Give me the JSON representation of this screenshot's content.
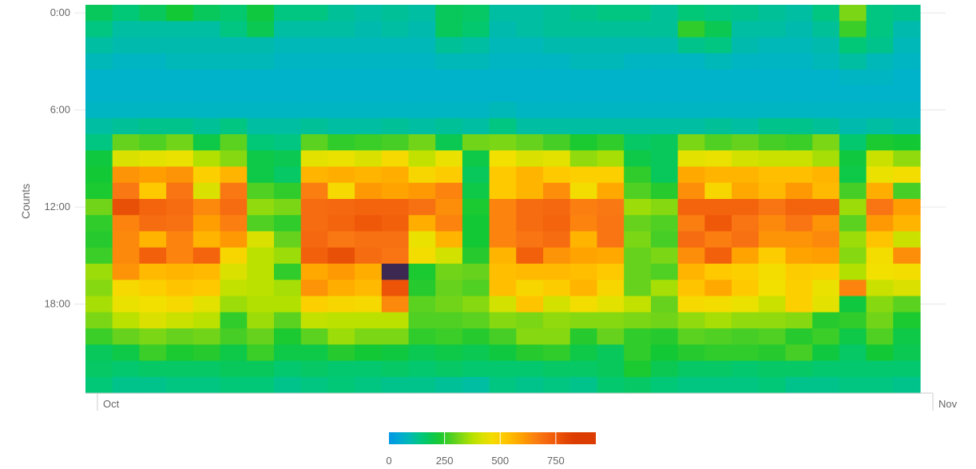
{
  "chart_data": {
    "type": "heatmap",
    "title": "",
    "xlabel": "",
    "ylabel": "Counts",
    "x_tick_labels": [
      "Oct",
      "Nov"
    ],
    "y_tick_labels": [
      "0:00",
      "6:00",
      "12:00",
      "18:00"
    ],
    "y_unit": "hour of day",
    "x_unit": "day",
    "columns": 31,
    "rows": 24,
    "color_range": [
      0,
      930
    ],
    "legend_ticks": [
      "0",
      "250",
      "500",
      "750"
    ],
    "legend_placement": "bottom-center",
    "grid": true,
    "colors": [
      "#0096e6",
      "#00b4c8",
      "#00c878",
      "#14c832",
      "#64d21e",
      "#b4e100",
      "#f0e100",
      "#ffc800",
      "#ffa000",
      "#fa7814",
      "#f05a0a",
      "#dc3c00",
      "#3c2850"
    ],
    "values": [
      [
        180,
        150,
        180,
        220,
        180,
        160,
        210,
        140,
        140,
        120,
        110,
        120,
        110,
        180,
        170,
        110,
        110,
        120,
        130,
        140,
        140,
        120,
        150,
        140,
        130,
        120,
        110,
        140,
        320,
        140,
        130
      ],
      [
        140,
        110,
        110,
        110,
        110,
        140,
        190,
        110,
        110,
        110,
        100,
        110,
        100,
        180,
        160,
        100,
        110,
        120,
        120,
        120,
        120,
        120,
        250,
        190,
        110,
        110,
        100,
        120,
        260,
        140,
        100
      ],
      [
        110,
        100,
        100,
        100,
        100,
        100,
        100,
        90,
        90,
        90,
        90,
        90,
        90,
        120,
        110,
        90,
        90,
        100,
        100,
        100,
        100,
        100,
        130,
        140,
        100,
        90,
        90,
        100,
        150,
        130,
        90
      ],
      [
        90,
        80,
        80,
        90,
        90,
        90,
        90,
        80,
        80,
        80,
        80,
        80,
        80,
        90,
        90,
        80,
        80,
        80,
        90,
        90,
        80,
        80,
        80,
        90,
        80,
        80,
        80,
        90,
        110,
        90,
        80
      ],
      [
        70,
        70,
        70,
        70,
        70,
        70,
        70,
        70,
        70,
        70,
        70,
        70,
        70,
        70,
        70,
        70,
        70,
        70,
        70,
        70,
        70,
        70,
        70,
        70,
        70,
        70,
        70,
        70,
        80,
        80,
        70
      ],
      [
        70,
        70,
        70,
        70,
        70,
        70,
        70,
        70,
        70,
        70,
        70,
        70,
        70,
        70,
        70,
        70,
        70,
        70,
        70,
        70,
        70,
        70,
        70,
        70,
        70,
        70,
        70,
        70,
        70,
        70,
        70
      ],
      [
        80,
        80,
        80,
        80,
        80,
        80,
        80,
        80,
        80,
        80,
        80,
        80,
        80,
        80,
        80,
        90,
        80,
        80,
        80,
        80,
        80,
        80,
        80,
        80,
        80,
        80,
        80,
        80,
        80,
        80,
        80
      ],
      [
        110,
        120,
        130,
        130,
        120,
        140,
        110,
        110,
        120,
        110,
        110,
        120,
        110,
        120,
        110,
        140,
        110,
        110,
        110,
        110,
        110,
        110,
        110,
        120,
        110,
        130,
        130,
        120,
        100,
        110,
        100
      ],
      [
        140,
        300,
        280,
        310,
        200,
        290,
        150,
        140,
        290,
        250,
        260,
        270,
        310,
        190,
        310,
        320,
        300,
        270,
        230,
        250,
        170,
        180,
        320,
        280,
        300,
        270,
        260,
        320,
        160,
        230,
        220
      ],
      [
        210,
        420,
        430,
        440,
        370,
        330,
        200,
        190,
        430,
        440,
        420,
        470,
        390,
        440,
        200,
        450,
        420,
        430,
        340,
        360,
        200,
        180,
        430,
        440,
        410,
        400,
        400,
        360,
        210,
        400,
        340
      ],
      [
        220,
        620,
        600,
        620,
        500,
        560,
        200,
        170,
        560,
        570,
        560,
        570,
        480,
        510,
        180,
        520,
        560,
        520,
        500,
        500,
        250,
        180,
        580,
        560,
        560,
        540,
        540,
        560,
        200,
        440,
        460
      ],
      [
        230,
        670,
        520,
        680,
        420,
        670,
        280,
        250,
        660,
        470,
        610,
        590,
        610,
        650,
        200,
        520,
        560,
        630,
        460,
        580,
        280,
        240,
        630,
        480,
        580,
        550,
        610,
        550,
        270,
        570,
        270
      ],
      [
        310,
        770,
        720,
        700,
        640,
        700,
        340,
        320,
        700,
        710,
        720,
        720,
        690,
        630,
        230,
        650,
        700,
        710,
        660,
        670,
        350,
        330,
        720,
        720,
        720,
        680,
        720,
        720,
        350,
        680,
        600
      ],
      [
        250,
        650,
        700,
        690,
        600,
        660,
        280,
        250,
        700,
        720,
        750,
        730,
        570,
        650,
        220,
        650,
        700,
        720,
        650,
        680,
        300,
        280,
        660,
        750,
        680,
        640,
        680,
        620,
        290,
        610,
        560
      ],
      [
        240,
        640,
        560,
        650,
        560,
        610,
        420,
        300,
        710,
        670,
        690,
        690,
        440,
        560,
        220,
        650,
        680,
        700,
        560,
        680,
        320,
        270,
        700,
        660,
        690,
        620,
        620,
        640,
        350,
        530,
        400
      ],
      [
        260,
        640,
        730,
        650,
        720,
        480,
        380,
        350,
        730,
        770,
        700,
        680,
        460,
        410,
        240,
        560,
        730,
        620,
        590,
        580,
        300,
        320,
        630,
        730,
        590,
        510,
        590,
        600,
        330,
        460,
        630
      ],
      [
        350,
        620,
        550,
        560,
        550,
        420,
        380,
        250,
        580,
        610,
        570,
        930,
        230,
        310,
        300,
        540,
        550,
        550,
        540,
        520,
        300,
        280,
        560,
        520,
        500,
        460,
        510,
        500,
        370,
        450,
        460
      ],
      [
        330,
        470,
        500,
        530,
        520,
        390,
        380,
        360,
        620,
        570,
        550,
        760,
        240,
        300,
        280,
        540,
        480,
        510,
        560,
        480,
        300,
        360,
        530,
        580,
        520,
        450,
        500,
        440,
        650,
        400,
        420
      ],
      [
        360,
        440,
        450,
        470,
        430,
        350,
        370,
        370,
        500,
        480,
        470,
        640,
        290,
        310,
        330,
        410,
        530,
        410,
        460,
        430,
        390,
        300,
        470,
        460,
        440,
        400,
        500,
        430,
        210,
        330,
        290
      ],
      [
        320,
        380,
        420,
        400,
        380,
        250,
        350,
        290,
        390,
        380,
        380,
        380,
        280,
        280,
        290,
        330,
        320,
        340,
        330,
        330,
        320,
        310,
        340,
        360,
        340,
        340,
        330,
        240,
        250,
        310,
        230
      ],
      [
        260,
        300,
        320,
        300,
        310,
        270,
        300,
        230,
        290,
        350,
        320,
        320,
        250,
        260,
        240,
        270,
        330,
        330,
        240,
        300,
        250,
        240,
        290,
        280,
        270,
        280,
        240,
        260,
        200,
        280,
        200
      ],
      [
        180,
        200,
        260,
        230,
        240,
        200,
        260,
        200,
        200,
        240,
        220,
        210,
        190,
        200,
        190,
        210,
        240,
        250,
        200,
        180,
        250,
        220,
        240,
        250,
        250,
        240,
        270,
        210,
        170,
        220,
        190
      ],
      [
        170,
        160,
        170,
        170,
        170,
        180,
        180,
        160,
        170,
        160,
        160,
        170,
        160,
        170,
        160,
        160,
        160,
        170,
        170,
        180,
        230,
        190,
        170,
        170,
        160,
        170,
        170,
        160,
        160,
        160,
        160
      ],
      [
        150,
        130,
        130,
        140,
        140,
        150,
        150,
        130,
        140,
        150,
        140,
        130,
        130,
        120,
        110,
        140,
        130,
        140,
        130,
        160,
        170,
        150,
        140,
        140,
        140,
        150,
        130,
        130,
        140,
        140,
        130
      ]
    ]
  }
}
